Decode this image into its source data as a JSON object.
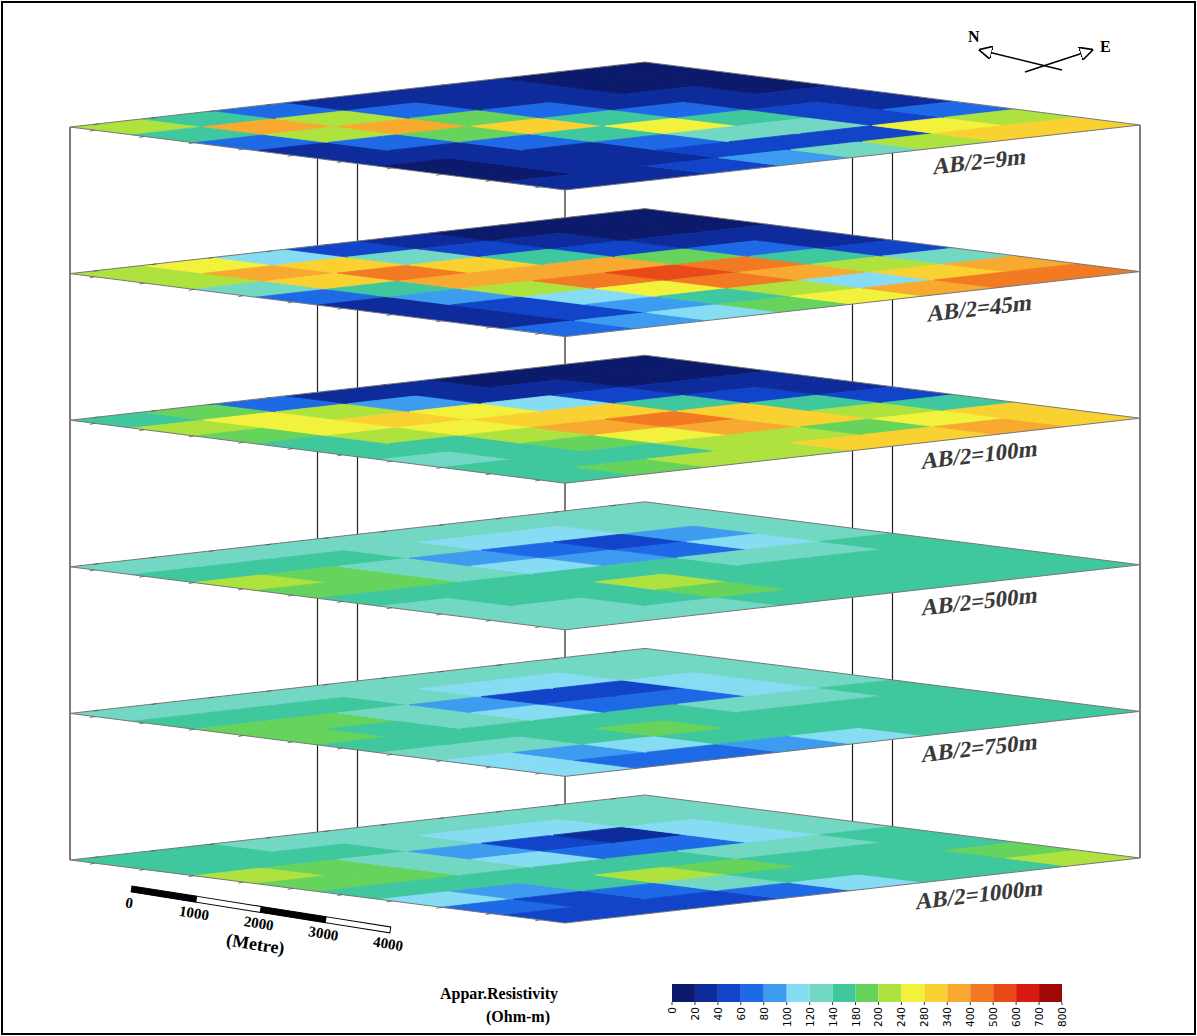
{
  "chart_data": {
    "type": "heatmap",
    "slices": [
      {
        "label": "AB/2=9m",
        "cells": [
          [
            200,
            150,
            60,
            25,
            20,
            15,
            15,
            20
          ],
          [
            150,
            350,
            210,
            70,
            30,
            20,
            20,
            30
          ],
          [
            60,
            210,
            340,
            190,
            60,
            30,
            30,
            50
          ],
          [
            30,
            60,
            180,
            280,
            170,
            60,
            40,
            80
          ],
          [
            20,
            30,
            60,
            160,
            240,
            130,
            50,
            120
          ],
          [
            20,
            20,
            30,
            60,
            140,
            120,
            50,
            220
          ],
          [
            15,
            15,
            20,
            30,
            50,
            50,
            260,
            320
          ],
          [
            15,
            15,
            15,
            20,
            30,
            60,
            200,
            300
          ]
        ]
      },
      {
        "label": "AB/2=45m",
        "cells": [
          [
            220,
            200,
            120,
            60,
            30,
            20,
            30,
            60
          ],
          [
            250,
            380,
            300,
            160,
            80,
            40,
            50,
            80
          ],
          [
            100,
            300,
            400,
            340,
            200,
            100,
            80,
            100
          ],
          [
            40,
            120,
            320,
            380,
            420,
            250,
            150,
            180
          ],
          [
            20,
            40,
            150,
            350,
            500,
            450,
            200,
            250
          ],
          [
            15,
            20,
            50,
            180,
            400,
            350,
            100,
            350
          ],
          [
            15,
            15,
            30,
            60,
            150,
            200,
            320,
            420
          ],
          [
            10,
            15,
            20,
            30,
            50,
            120,
            360,
            400
          ]
        ]
      },
      {
        "label": "AB/2=100m",
        "cells": [
          [
            150,
            200,
            180,
            160,
            140,
            120,
            140,
            150
          ],
          [
            180,
            260,
            240,
            200,
            160,
            140,
            150,
            180
          ],
          [
            60,
            200,
            280,
            260,
            220,
            180,
            160,
            200
          ],
          [
            30,
            80,
            240,
            300,
            340,
            260,
            200,
            220
          ],
          [
            20,
            30,
            100,
            280,
            400,
            380,
            220,
            280
          ],
          [
            15,
            20,
            40,
            140,
            300,
            320,
            180,
            300
          ],
          [
            15,
            15,
            30,
            50,
            140,
            200,
            260,
            340
          ],
          [
            15,
            15,
            20,
            30,
            50,
            150,
            280,
            320
          ]
        ]
      },
      {
        "label": "AB/2=500m",
        "cells": [
          [
            130,
            160,
            200,
            190,
            150,
            130,
            120,
            120
          ],
          [
            130,
            150,
            180,
            180,
            150,
            140,
            130,
            130
          ],
          [
            130,
            140,
            130,
            120,
            140,
            170,
            160,
            130
          ],
          [
            130,
            120,
            90,
            100,
            150,
            200,
            190,
            140
          ],
          [
            130,
            110,
            60,
            80,
            140,
            170,
            160,
            140
          ],
          [
            130,
            110,
            40,
            60,
            120,
            140,
            140,
            140
          ],
          [
            130,
            120,
            90,
            100,
            130,
            140,
            140,
            140
          ],
          [
            130,
            130,
            130,
            130,
            140,
            140,
            140,
            140
          ]
        ]
      },
      {
        "label": "AB/2=750m",
        "cells": [
          [
            130,
            160,
            190,
            180,
            140,
            120,
            110,
            100
          ],
          [
            130,
            150,
            180,
            170,
            140,
            120,
            90,
            70
          ],
          [
            130,
            140,
            130,
            120,
            140,
            150,
            100,
            60
          ],
          [
            130,
            120,
            90,
            100,
            150,
            190,
            140,
            80
          ],
          [
            130,
            110,
            50,
            70,
            140,
            170,
            150,
            110
          ],
          [
            130,
            110,
            40,
            60,
            120,
            140,
            140,
            140
          ],
          [
            130,
            120,
            100,
            100,
            130,
            140,
            140,
            140
          ],
          [
            130,
            130,
            130,
            130,
            140,
            140,
            140,
            140
          ]
        ]
      },
      {
        "label": "AB/2=1000m",
        "cells": [
          [
            140,
            170,
            200,
            190,
            150,
            110,
            70,
            50
          ],
          [
            140,
            160,
            190,
            180,
            140,
            90,
            50,
            40
          ],
          [
            130,
            140,
            130,
            120,
            150,
            140,
            60,
            40
          ],
          [
            130,
            120,
            90,
            100,
            170,
            200,
            120,
            60
          ],
          [
            130,
            110,
            40,
            60,
            150,
            180,
            150,
            100
          ],
          [
            130,
            110,
            30,
            60,
            120,
            150,
            150,
            150
          ],
          [
            130,
            120,
            100,
            100,
            130,
            150,
            160,
            170
          ],
          [
            130,
            130,
            130,
            130,
            140,
            160,
            180,
            200
          ]
        ]
      }
    ],
    "colorbar": {
      "title": "Appar.Resistivity",
      "unit": "(Ohm-m)",
      "ticks": [
        0,
        20,
        40,
        60,
        80,
        100,
        120,
        140,
        180,
        200,
        240,
        280,
        340,
        400,
        500,
        600,
        700,
        800
      ],
      "colors": [
        "#0b1a6b",
        "#0e2b9c",
        "#1244c9",
        "#1e6ae6",
        "#3d9cf0",
        "#86dcf2",
        "#72d8c4",
        "#3fc79e",
        "#66d35c",
        "#aee23e",
        "#f2f23c",
        "#f9d232",
        "#f8aa30",
        "#f27a22",
        "#e84a18",
        "#d81a10",
        "#a00808"
      ]
    },
    "scale_bar": {
      "ticks": [
        0,
        1000,
        2000,
        3000,
        4000
      ],
      "title": "(Metre)"
    },
    "north_label": "N",
    "east_label": "E"
  }
}
